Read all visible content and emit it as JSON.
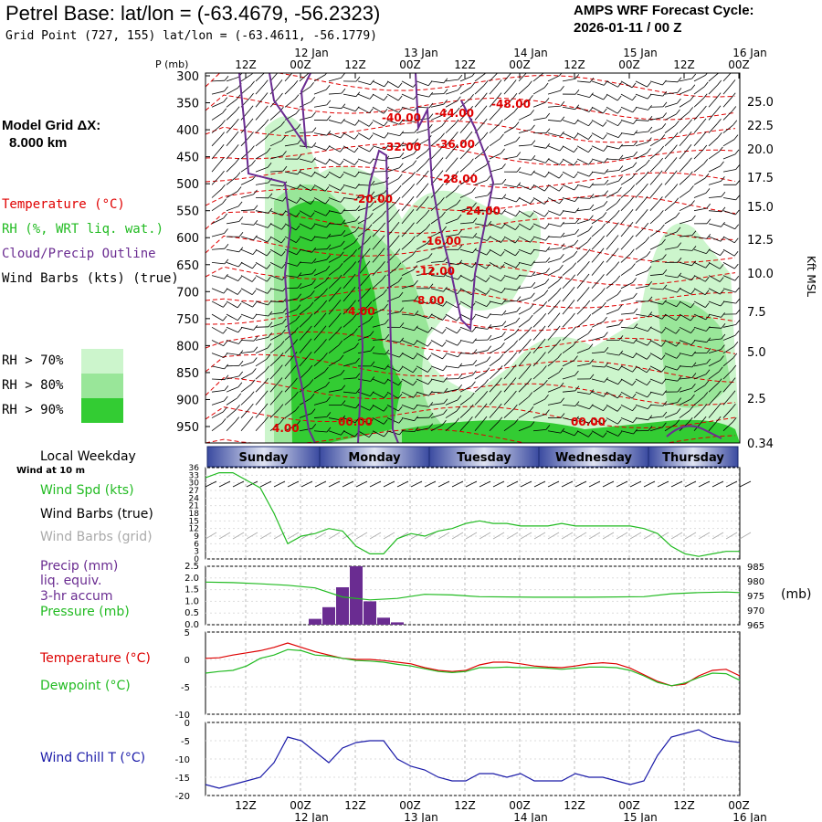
{
  "header": {
    "title": "Petrel Base:  lat/lon = (-63.4679, -56.2323)",
    "subtitle": "Grid Point (727, 155) lat/lon = (-63.4611, -56.1779)",
    "cycle_line1": "AMPS WRF Forecast Cycle:",
    "cycle_line2": "2026-01-11 / 00  Z",
    "grid_dx_line1": "Model Grid ΔX:",
    "grid_dx_line2": "8.000 km"
  },
  "legend": {
    "temperature": "Temperature (°C)",
    "rh": "RH (%, WRT liq. wat.)",
    "cloud": "Cloud/Precip Outline",
    "wind": "Wind Barbs (kts) (true)",
    "rh70": "RH > 70%",
    "rh80": "RH > 80%",
    "rh90": "RH > 90%",
    "colors": {
      "rh70": "#ccf5cc",
      "rh80": "#99e699",
      "rh90": "#33cc33",
      "temp": "#e00000",
      "cloud": "#6a2c91"
    }
  },
  "time_axis": {
    "top_hours": [
      "12Z",
      "00Z",
      "12Z",
      "00Z",
      "12Z",
      "00Z",
      "12Z",
      "00Z",
      "12Z",
      "00Z"
    ],
    "top_dates": [
      "12 Jan",
      "13 Jan",
      "14 Jan",
      "15 Jan",
      "16 Jan"
    ],
    "bottom_hours": [
      "12Z",
      "00Z",
      "12Z",
      "00Z",
      "12Z",
      "00Z",
      "12Z",
      "00Z",
      "12Z",
      "00Z"
    ],
    "bottom_dates": [
      "12 Jan",
      "13 Jan",
      "14 Jan",
      "15 Jan",
      "16 Jan"
    ]
  },
  "weekday": {
    "label": "Local Weekday",
    "days": [
      "Sunday",
      "Monday",
      "Tuesday",
      "Wednesday",
      "Thursday"
    ]
  },
  "chart_data": [
    {
      "type": "contour",
      "name": "cross-section",
      "y_axis_label": "P (mb)",
      "pressure_ticks": [
        300,
        350,
        400,
        450,
        500,
        550,
        600,
        650,
        700,
        750,
        800,
        850,
        900,
        950
      ],
      "height_ticks_kft": [
        "25.0",
        "22.5",
        "20.0",
        "17.5",
        "15.0",
        "12.5",
        "10.0",
        "7.5",
        "5.0",
        "2.5",
        "0.34"
      ],
      "right_axis_label": "Kft MSL",
      "temperature_labels": [
        "-48.00",
        "-44.00",
        "-40.00",
        "-36.00",
        "-32.00",
        "-28.00",
        "-24.00",
        "-20.00",
        "-16.00",
        "-12.00",
        "-8.00",
        "-4.00",
        "4.00",
        "00.00",
        "00.00"
      ],
      "pressure_label_ticks": [
        "300",
        "350",
        "400",
        "450",
        "500",
        "550",
        "600",
        "650",
        "700",
        "750",
        "800",
        "850",
        "900",
        "950"
      ]
    },
    {
      "type": "line",
      "name": "wind-panel",
      "title": "Wind at 10 m",
      "labels": [
        "Wind Spd (kts)",
        "Wind Barbs (true)",
        "Wind Barbs (grid)"
      ],
      "yticks": [
        "36",
        "33",
        "30",
        "27",
        "24",
        "21",
        "18",
        "15",
        "12",
        "9",
        "6",
        "3",
        "0"
      ],
      "ylim": [
        0,
        36
      ],
      "x": [
        0,
        3,
        6,
        9,
        12,
        15,
        18,
        21,
        24,
        27,
        30,
        33,
        36,
        39,
        42,
        45,
        48,
        51,
        54,
        57,
        60,
        63,
        66,
        69,
        72,
        75,
        78,
        81,
        84,
        87,
        90,
        93,
        96,
        99,
        102,
        105,
        108,
        111,
        114,
        117
      ],
      "values": [
        32,
        34,
        34,
        31,
        28,
        18,
        6,
        9,
        10,
        12,
        11,
        5,
        2,
        2,
        8,
        10,
        9,
        11,
        12,
        14,
        15,
        14,
        14,
        13,
        13,
        13,
        14,
        13,
        13,
        13,
        13,
        13,
        12,
        10,
        5,
        2,
        1,
        2,
        3,
        3
      ],
      "colors": {
        "speed": "#22bb22",
        "barbs": "#000000",
        "grid": "#aaaaaa"
      }
    },
    {
      "type": "bar",
      "name": "precip-panel",
      "labels": [
        "Precip (mm)",
        "liq. equiv.",
        "3-hr accum",
        "Pressure (mb)"
      ],
      "yticks_left": [
        "2.5",
        "2.0",
        "1.5",
        "1.0",
        "0.5",
        "0.0"
      ],
      "yticks_right": [
        "985",
        "980",
        "975",
        "970",
        "965"
      ],
      "right_unit": "(mb)",
      "ylim_precip": [
        0,
        2.5
      ],
      "ylim_pressure": [
        965,
        985
      ],
      "precip_x": [
        24,
        27,
        30,
        33,
        36,
        39,
        42
      ],
      "precip_values": [
        0.25,
        0.75,
        1.6,
        2.5,
        1.0,
        0.3,
        0.1
      ],
      "pressure_x": [
        0,
        6,
        12,
        18,
        24,
        30,
        36,
        42,
        48,
        54,
        60,
        72,
        84,
        96,
        102,
        108,
        114,
        117
      ],
      "pressure_values": [
        979.6,
        979.4,
        979.0,
        978.5,
        977.6,
        974.5,
        973.5,
        974.0,
        975.4,
        975.2,
        974.6,
        974.4,
        974.4,
        974.6,
        975.6,
        976.0,
        976.2,
        976.0
      ],
      "colors": {
        "precip": "#6a2c91",
        "pressure": "#22bb22"
      }
    },
    {
      "type": "line",
      "name": "temperature-panel",
      "labels": [
        "Temperature (°C)",
        "Dewpoint (°C)"
      ],
      "yticks": [
        "5",
        "0",
        "-5",
        "-10"
      ],
      "ylim": [
        -10,
        5
      ],
      "x": [
        0,
        3,
        6,
        9,
        12,
        15,
        18,
        21,
        24,
        27,
        30,
        33,
        36,
        39,
        42,
        45,
        48,
        51,
        54,
        57,
        60,
        63,
        66,
        69,
        72,
        75,
        78,
        81,
        84,
        87,
        90,
        93,
        96,
        99,
        102,
        105,
        108,
        111,
        114,
        117
      ],
      "series": [
        {
          "name": "Temperature",
          "values": [
            0.2,
            0.3,
            0.8,
            1.2,
            1.6,
            2.2,
            3.0,
            2.2,
            1.4,
            0.8,
            0.2,
            0.0,
            0.0,
            -0.2,
            -0.5,
            -0.8,
            -1.5,
            -2.0,
            -2.2,
            -2.0,
            -1.0,
            -0.5,
            -0.5,
            -0.8,
            -1.2,
            -1.4,
            -1.5,
            -1.2,
            -0.8,
            -0.6,
            -0.8,
            -1.6,
            -2.8,
            -4.0,
            -4.8,
            -4.5,
            -3.0,
            -2.0,
            -1.8,
            -3.0
          ]
        },
        {
          "name": "Dewpoint",
          "values": [
            -2.5,
            -2.2,
            -2.0,
            -1.2,
            0.2,
            0.8,
            1.8,
            1.6,
            0.8,
            0.6,
            0.2,
            -0.2,
            -0.3,
            -0.5,
            -0.9,
            -1.2,
            -1.7,
            -2.2,
            -2.4,
            -2.2,
            -1.5,
            -1.5,
            -1.4,
            -1.5,
            -1.5,
            -1.6,
            -1.8,
            -1.6,
            -1.4,
            -1.4,
            -1.5,
            -2.0,
            -3.0,
            -4.2,
            -4.8,
            -4.3,
            -3.3,
            -2.5,
            -2.6,
            -3.8
          ]
        }
      ],
      "colors": {
        "temperature": "#dd0000",
        "dewpoint": "#22bb22"
      }
    },
    {
      "type": "line",
      "name": "windchill-panel",
      "labels": [
        "Wind Chill T (°C)"
      ],
      "yticks": [
        "0",
        "-5",
        "-10",
        "-15",
        "-20"
      ],
      "ylim": [
        -20,
        0
      ],
      "x": [
        0,
        3,
        6,
        9,
        12,
        15,
        18,
        21,
        24,
        27,
        30,
        33,
        36,
        39,
        42,
        45,
        48,
        51,
        54,
        57,
        60,
        63,
        66,
        69,
        72,
        75,
        78,
        81,
        84,
        87,
        90,
        93,
        96,
        99,
        102,
        105,
        108,
        111,
        114,
        117
      ],
      "values": [
        -17,
        -18,
        -17,
        -16,
        -15,
        -11,
        -4,
        -5,
        -8,
        -11,
        -7,
        -5.5,
        -5,
        -5,
        -10,
        -12,
        -13,
        -15,
        -16,
        -16,
        -14,
        -14,
        -15,
        -14,
        -16,
        -16,
        -16,
        -14,
        -15,
        -15,
        -16,
        -17,
        -16,
        -9,
        -4,
        -3,
        -2,
        -4,
        -5,
        -5.5
      ],
      "color": "#1a1aa8"
    }
  ]
}
